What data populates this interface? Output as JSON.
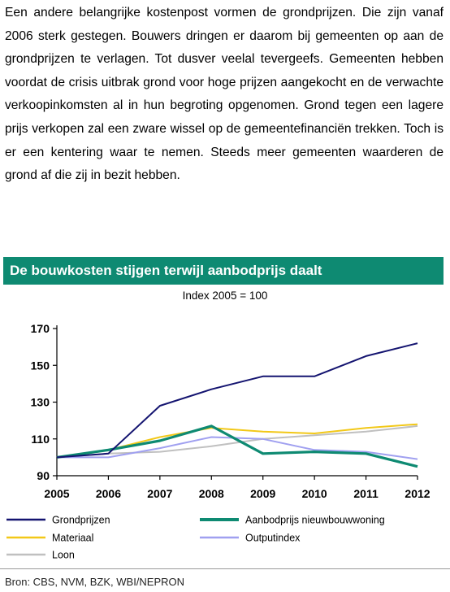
{
  "paragraph": "Een andere belangrijke kostenpost vormen de grondprijzen. Die zijn vanaf 2006 sterk gestegen. Bouwers dringen er daarom bij gemeenten op aan de grondprijzen te verlagen. Tot dusver veelal tevergeefs. Gemeenten hebben voordat de crisis uitbrak grond voor hoge prijzen aangekocht en de verwachte verkoopinkomsten al in hun begroting opgenomen. Grond tegen een lagere prijs verkopen zal een zware wissel op de gemeentefinanciën trekken. Toch is er een kentering waar te nemen. Steeds meer gemeenten waarderen de grond af die zij in bezit hebben.",
  "source": "Bron: CBS, NVM, BZK, WBI/NEPRON",
  "chart_data": {
    "type": "line",
    "title": "De bouwkosten stijgen terwijl aanbodprijs daalt",
    "subtitle": "Index 2005 = 100",
    "xlabel": "",
    "ylabel": "",
    "x": [
      "2005",
      "2006",
      "2007",
      "2008",
      "2009",
      "2010",
      "2011",
      "2012"
    ],
    "ylim": [
      90,
      170
    ],
    "yticks": [
      "90",
      "110",
      "130",
      "150",
      "170"
    ],
    "grid": false,
    "legend_position": "bottom",
    "series": [
      {
        "name": "Grondprijzen",
        "color": "#141470",
        "values": [
          100,
          102,
          128,
          137,
          144,
          144,
          155,
          162
        ]
      },
      {
        "name": "Aanbodprijs nieuwbouwwoning",
        "color": "#0e8a72",
        "values": [
          100,
          104,
          109,
          117,
          102,
          103,
          102,
          95
        ]
      },
      {
        "name": "Materiaal",
        "color": "#f2c818",
        "values": [
          100,
          104,
          111,
          116,
          114,
          113,
          116,
          118
        ]
      },
      {
        "name": "Outputindex",
        "color": "#a0a0f0",
        "values": [
          100,
          100,
          105,
          111,
          110,
          104,
          103,
          99
        ]
      },
      {
        "name": "Loon",
        "color": "#c0c0c0",
        "values": [
          100,
          102,
          103,
          106,
          110,
          112,
          114,
          117
        ]
      }
    ]
  }
}
